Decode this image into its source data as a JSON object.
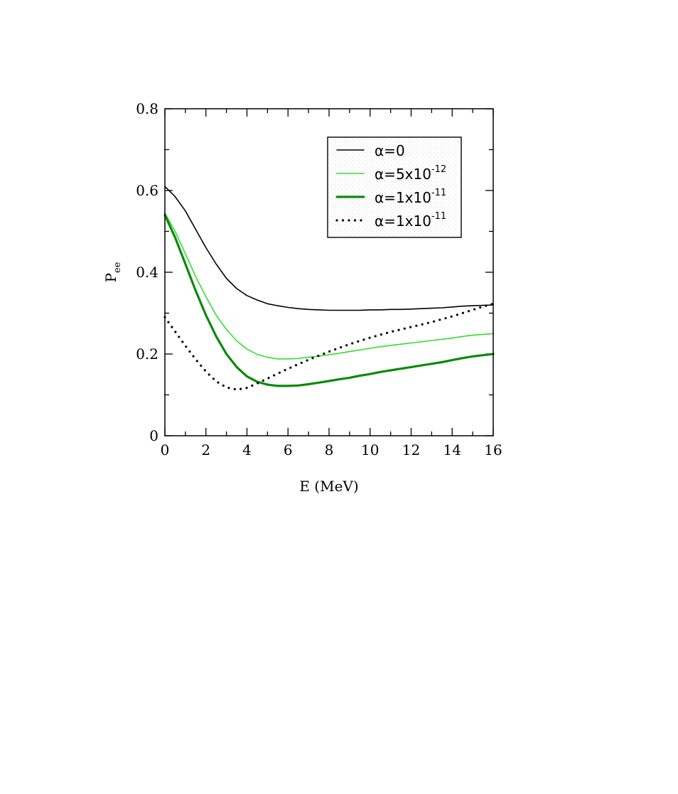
{
  "chart_data": {
    "type": "line",
    "xlabel": "E (MeV)",
    "ylabel": {
      "main": "P",
      "sub": "ee"
    },
    "xlim": [
      0,
      16
    ],
    "ylim": [
      0,
      0.8
    ],
    "x_ticks": [
      "0",
      "2",
      "4",
      "6",
      "8",
      "10",
      "12",
      "14",
      "16"
    ],
    "y_ticks": [
      "0",
      "0.2",
      "0.4",
      "0.6",
      "0.8"
    ],
    "grid": false,
    "legend_position": "top-right",
    "series": [
      {
        "name": "α=0",
        "legend_base": "α=0",
        "legend_sup": "",
        "color": "#000000",
        "style": "solid-thin",
        "points": [
          [
            0,
            0.61
          ],
          [
            0.5,
            0.585
          ],
          [
            1,
            0.55
          ],
          [
            1.5,
            0.505
          ],
          [
            2,
            0.46
          ],
          [
            2.5,
            0.42
          ],
          [
            3,
            0.385
          ],
          [
            3.5,
            0.36
          ],
          [
            4,
            0.343
          ],
          [
            4.5,
            0.332
          ],
          [
            5,
            0.323
          ],
          [
            5.5,
            0.318
          ],
          [
            6,
            0.314
          ],
          [
            6.5,
            0.311
          ],
          [
            7,
            0.309
          ],
          [
            7.5,
            0.308
          ],
          [
            8,
            0.307
          ],
          [
            8.5,
            0.307
          ],
          [
            9,
            0.307
          ],
          [
            9.5,
            0.307
          ],
          [
            10,
            0.308
          ],
          [
            10.5,
            0.308
          ],
          [
            11,
            0.309
          ],
          [
            11.5,
            0.309
          ],
          [
            12,
            0.31
          ],
          [
            12.5,
            0.311
          ],
          [
            13,
            0.312
          ],
          [
            13.5,
            0.313
          ],
          [
            14,
            0.315
          ],
          [
            14.5,
            0.317
          ],
          [
            15,
            0.318
          ],
          [
            15.5,
            0.319
          ],
          [
            16,
            0.32
          ]
        ]
      },
      {
        "name": "α=5x10-12",
        "legend_base": "α=5x10",
        "legend_sup": "-12",
        "color": "#33dd33",
        "style": "solid-thin",
        "points": [
          [
            0,
            0.545
          ],
          [
            0.5,
            0.5
          ],
          [
            1,
            0.445
          ],
          [
            1.5,
            0.39
          ],
          [
            2,
            0.34
          ],
          [
            2.5,
            0.295
          ],
          [
            3,
            0.26
          ],
          [
            3.5,
            0.232
          ],
          [
            4,
            0.212
          ],
          [
            4.5,
            0.199
          ],
          [
            5,
            0.192
          ],
          [
            5.5,
            0.188
          ],
          [
            6,
            0.188
          ],
          [
            6.5,
            0.189
          ],
          [
            7,
            0.192
          ],
          [
            7.5,
            0.195
          ],
          [
            8,
            0.198
          ],
          [
            8.5,
            0.202
          ],
          [
            9,
            0.206
          ],
          [
            9.5,
            0.21
          ],
          [
            10,
            0.214
          ],
          [
            10.5,
            0.218
          ],
          [
            11,
            0.221
          ],
          [
            11.5,
            0.224
          ],
          [
            12,
            0.227
          ],
          [
            12.5,
            0.23
          ],
          [
            13,
            0.233
          ],
          [
            13.5,
            0.236
          ],
          [
            14,
            0.239
          ],
          [
            14.5,
            0.243
          ],
          [
            15,
            0.246
          ],
          [
            15.5,
            0.248
          ],
          [
            16,
            0.25
          ]
        ]
      },
      {
        "name": "α=1x10-11",
        "legend_base": "α=1x10",
        "legend_sup": "-11",
        "color": "#0a8a0a",
        "style": "solid-thick",
        "points": [
          [
            0,
            0.54
          ],
          [
            0.5,
            0.485
          ],
          [
            1,
            0.42
          ],
          [
            1.5,
            0.355
          ],
          [
            2,
            0.295
          ],
          [
            2.5,
            0.243
          ],
          [
            3,
            0.2
          ],
          [
            3.5,
            0.168
          ],
          [
            4,
            0.145
          ],
          [
            4.5,
            0.132
          ],
          [
            5,
            0.125
          ],
          [
            5.5,
            0.122
          ],
          [
            6,
            0.122
          ],
          [
            6.5,
            0.123
          ],
          [
            7,
            0.126
          ],
          [
            7.5,
            0.13
          ],
          [
            8,
            0.134
          ],
          [
            8.5,
            0.138
          ],
          [
            9,
            0.142
          ],
          [
            9.5,
            0.147
          ],
          [
            10,
            0.151
          ],
          [
            10.5,
            0.156
          ],
          [
            11,
            0.16
          ],
          [
            11.5,
            0.164
          ],
          [
            12,
            0.168
          ],
          [
            12.5,
            0.172
          ],
          [
            13,
            0.176
          ],
          [
            13.5,
            0.18
          ],
          [
            14,
            0.185
          ],
          [
            14.5,
            0.19
          ],
          [
            15,
            0.194
          ],
          [
            15.5,
            0.197
          ],
          [
            16,
            0.2
          ]
        ]
      },
      {
        "name": "α=1x10-11",
        "legend_base": "α=1x10",
        "legend_sup": "-11",
        "color": "#000000",
        "style": "dotted",
        "points": [
          [
            0,
            0.29
          ],
          [
            0.5,
            0.255
          ],
          [
            1,
            0.22
          ],
          [
            1.5,
            0.187
          ],
          [
            2,
            0.157
          ],
          [
            2.5,
            0.133
          ],
          [
            3,
            0.118
          ],
          [
            3.5,
            0.113
          ],
          [
            4,
            0.117
          ],
          [
            4.5,
            0.128
          ],
          [
            5,
            0.14
          ],
          [
            5.5,
            0.152
          ],
          [
            6,
            0.164
          ],
          [
            6.5,
            0.175
          ],
          [
            7,
            0.186
          ],
          [
            7.5,
            0.196
          ],
          [
            8,
            0.206
          ],
          [
            8.5,
            0.215
          ],
          [
            9,
            0.224
          ],
          [
            9.5,
            0.232
          ],
          [
            10,
            0.24
          ],
          [
            10.5,
            0.247
          ],
          [
            11,
            0.254
          ],
          [
            11.5,
            0.26
          ],
          [
            12,
            0.266
          ],
          [
            12.5,
            0.272
          ],
          [
            13,
            0.278
          ],
          [
            13.5,
            0.285
          ],
          [
            14,
            0.292
          ],
          [
            14.5,
            0.3
          ],
          [
            15,
            0.308
          ],
          [
            15.5,
            0.316
          ],
          [
            16,
            0.323
          ]
        ]
      }
    ]
  }
}
